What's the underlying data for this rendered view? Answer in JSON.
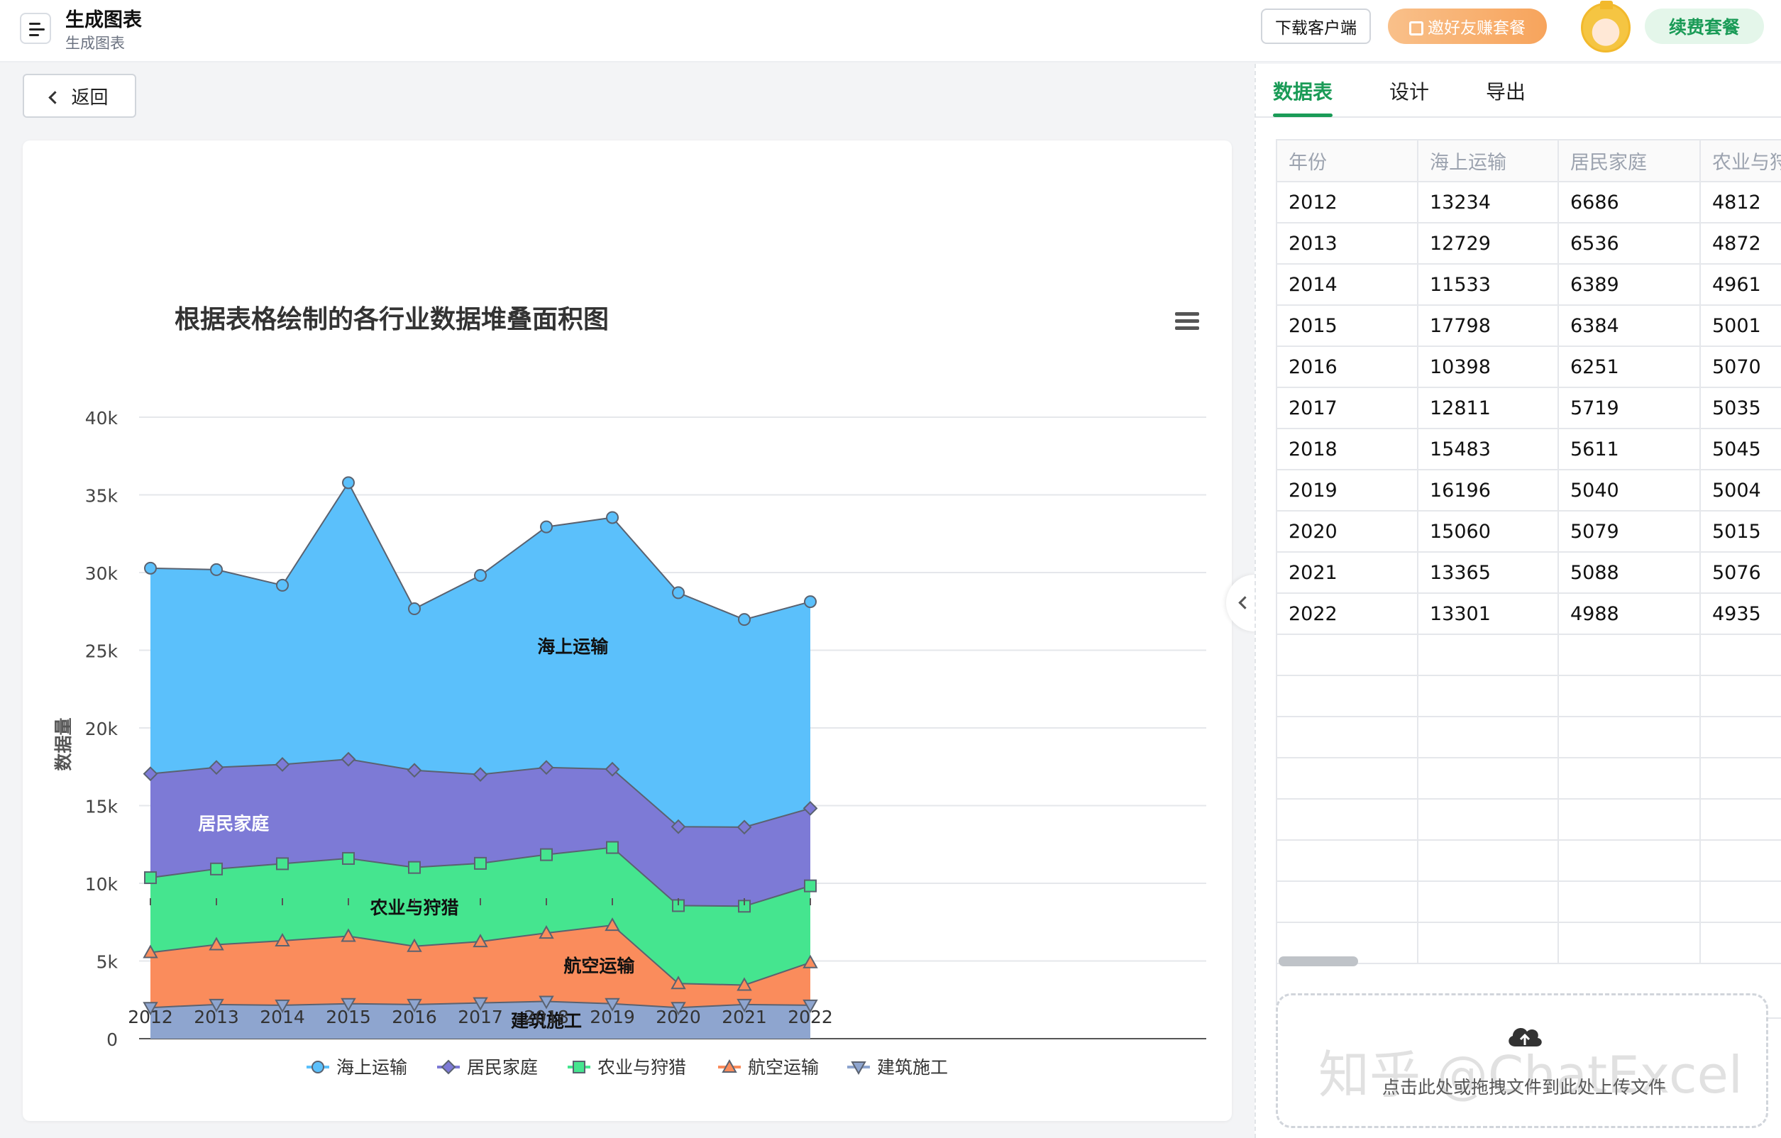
{
  "header": {
    "title": "生成图表",
    "subtitle": "生成图表",
    "download_label": "下载客户端",
    "invite_label": "邀好友赚套餐",
    "renew_label": "续费套餐"
  },
  "back_label": "返回",
  "tabs": [
    {
      "label": "数据表",
      "active": true
    },
    {
      "label": "设计",
      "active": false
    },
    {
      "label": "导出",
      "active": false
    }
  ],
  "table": {
    "headers": [
      "年份",
      "海上运输",
      "居民家庭",
      "农业与狩"
    ],
    "rows": [
      [
        "2012",
        "13234",
        "6686",
        "4812"
      ],
      [
        "2013",
        "12729",
        "6536",
        "4872"
      ],
      [
        "2014",
        "11533",
        "6389",
        "4961"
      ],
      [
        "2015",
        "17798",
        "6384",
        "5001"
      ],
      [
        "2016",
        "10398",
        "6251",
        "5070"
      ],
      [
        "2017",
        "12811",
        "5719",
        "5035"
      ],
      [
        "2018",
        "15483",
        "5611",
        "5045"
      ],
      [
        "2019",
        "16196",
        "5040",
        "5004"
      ],
      [
        "2020",
        "15060",
        "5079",
        "5015"
      ],
      [
        "2021",
        "13365",
        "5088",
        "5076"
      ],
      [
        "2022",
        "13301",
        "4988",
        "4935"
      ]
    ]
  },
  "upload_text": "点击此处或拖拽文件到此处上传文件",
  "watermark": "知乎 @ChatExcel",
  "chart_data": {
    "type": "area",
    "stacked": true,
    "title": "根据表格绘制的各行业数据堆叠面积图",
    "ylabel": "数据量",
    "xlabel": "",
    "ylim": [
      0,
      40000
    ],
    "yticks": [
      "0",
      "5k",
      "10k",
      "15k",
      "20k",
      "25k",
      "30k",
      "35k",
      "40k"
    ],
    "categories": [
      "2012",
      "2013",
      "2014",
      "2015",
      "2016",
      "2017",
      "2018",
      "2019",
      "2020",
      "2021",
      "2022"
    ],
    "grid": true,
    "legend": "bottom",
    "series": [
      {
        "name": "建筑施工",
        "color": "#8ea5cf",
        "marker": "triangle-down",
        "values": [
          2000,
          2200,
          2150,
          2250,
          2200,
          2300,
          2400,
          2250,
          2000,
          2200,
          2150
        ]
      },
      {
        "name": "航空运输",
        "color": "#fa8c5c",
        "marker": "triangle",
        "values": [
          3550,
          3850,
          4150,
          4350,
          3750,
          3950,
          4400,
          5050,
          1550,
          1250,
          2750
        ]
      },
      {
        "name": "农业与狩猎",
        "color": "#45e58f",
        "marker": "square",
        "values": [
          4812,
          4872,
          4961,
          5001,
          5070,
          5035,
          5045,
          5004,
          5015,
          5076,
          4935
        ]
      },
      {
        "name": "居民家庭",
        "color": "#7d7ad6",
        "marker": "diamond",
        "values": [
          6686,
          6536,
          6389,
          6384,
          6251,
          5719,
          5611,
          5040,
          5079,
          5088,
          4988
        ]
      },
      {
        "name": "海上运输",
        "color": "#5bc0fb",
        "marker": "circle",
        "values": [
          13234,
          12729,
          11533,
          17798,
          10398,
          12811,
          15483,
          16196,
          15060,
          13365,
          13301
        ]
      }
    ],
    "legend_order": [
      "海上运输",
      "居民家庭",
      "农业与狩猎",
      "航空运输",
      "建筑施工"
    ]
  }
}
